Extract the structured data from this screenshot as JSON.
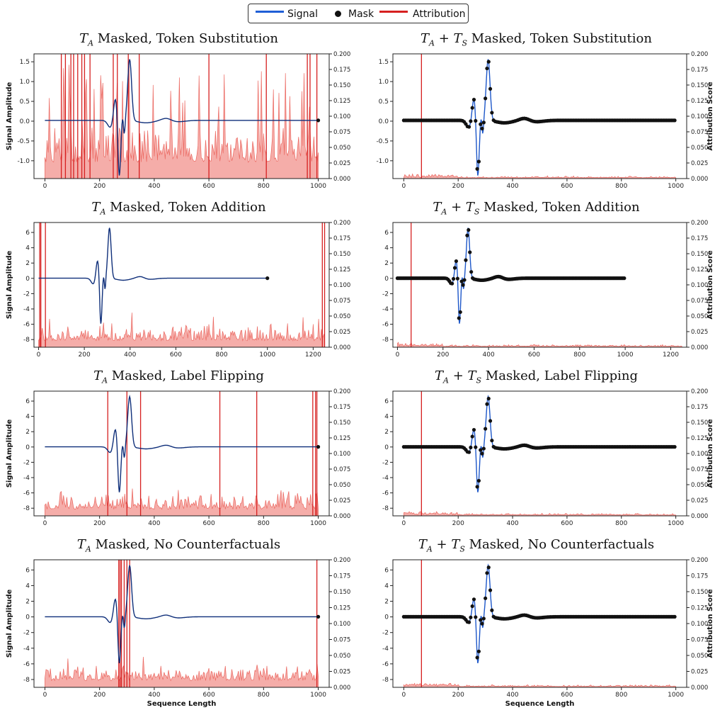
{
  "legend": {
    "signal_label": "Signal",
    "mask_label": "Mask",
    "attribution_label": "Attribution",
    "signal_color": "#1f5fd6",
    "mask_color": "#111111",
    "attribution_color": "#d62020"
  },
  "chart_data": [
    {
      "id": "p1",
      "type": "line",
      "title_main": "T",
      "title_sub": "A",
      "title_mid": "",
      "title_sub2": "",
      "title_rest": " Masked, Token Substitution",
      "ylabel": "Signal Amplitude",
      "y2label": "",
      "xlabel": "",
      "mask_markers": false,
      "attr_scale": "high",
      "xlim": [
        -40,
        1040
      ],
      "ylim": [
        -1.45,
        1.7
      ],
      "y2lim": [
        0,
        0.2
      ],
      "xticks": [
        0,
        200,
        400,
        600,
        800,
        1000
      ],
      "yticks": [
        -1.0,
        -0.5,
        0.0,
        0.5,
        1.0,
        1.5
      ],
      "y2ticks": [
        0,
        0.025,
        0.05,
        0.075,
        0.1,
        0.125,
        0.15,
        0.175,
        0.2
      ],
      "signal_len": 1000,
      "attr_len": 1000,
      "amp": 1.55,
      "spikes": [
        60,
        75,
        95,
        105,
        120,
        135,
        145,
        165,
        250,
        265,
        305,
        345,
        600,
        810,
        960,
        970,
        995
      ]
    },
    {
      "id": "p2",
      "type": "line",
      "title_main": "T",
      "title_sub": "A",
      "title_mid": " + T",
      "title_sub2": "S",
      "title_rest": " Masked, Token Substitution",
      "ylabel": "",
      "y2label": "Attribution Score",
      "xlabel": "",
      "mask_markers": true,
      "attr_scale": "low",
      "xlim": [
        -40,
        1040
      ],
      "ylim": [
        -1.45,
        1.7
      ],
      "y2lim": [
        0,
        0.2
      ],
      "xticks": [
        0,
        200,
        400,
        600,
        800,
        1000
      ],
      "yticks": [
        -1.0,
        -0.5,
        0.0,
        0.5,
        1.0,
        1.5
      ],
      "y2ticks": [
        0,
        0.025,
        0.05,
        0.075,
        0.1,
        0.125,
        0.15,
        0.175,
        0.2
      ],
      "signal_len": 1000,
      "attr_len": 1000,
      "amp": 1.55,
      "spikes": [
        65
      ]
    },
    {
      "id": "p3",
      "type": "line",
      "title_main": "T",
      "title_sub": "A",
      "title_mid": "",
      "title_sub2": "",
      "title_rest": " Masked, Token Addition",
      "ylabel": "Signal Amplitude",
      "y2label": "",
      "xlabel": "",
      "mask_markers": false,
      "attr_scale": "medium",
      "xlim": [
        -20,
        1270
      ],
      "ylim": [
        -9,
        7.3
      ],
      "y2lim": [
        0,
        0.2
      ],
      "xticks": [
        0,
        200,
        400,
        600,
        800,
        1000,
        1200
      ],
      "yticks": [
        -8,
        -6,
        -4,
        -2,
        0,
        2,
        4,
        6
      ],
      "y2ticks": [
        0,
        0.025,
        0.05,
        0.075,
        0.1,
        0.125,
        0.15,
        0.175,
        0.2
      ],
      "signal_len": 1000,
      "attr_len": 1250,
      "amp": 6.6,
      "spikes": [
        5,
        10,
        30,
        1240,
        1250
      ]
    },
    {
      "id": "p4",
      "type": "line",
      "title_main": "T",
      "title_sub": "A",
      "title_mid": " + T",
      "title_sub2": "S",
      "title_rest": " Masked, Token Addition",
      "ylabel": "",
      "y2label": "Attribution Score",
      "xlabel": "",
      "mask_markers": true,
      "attr_scale": "low",
      "xlim": [
        -20,
        1270
      ],
      "ylim": [
        -9,
        7.3
      ],
      "y2lim": [
        0,
        0.2
      ],
      "xticks": [
        0,
        200,
        400,
        600,
        800,
        1000,
        1200
      ],
      "yticks": [
        -8,
        -6,
        -4,
        -2,
        0,
        2,
        4,
        6
      ],
      "y2ticks": [
        0,
        0.025,
        0.05,
        0.075,
        0.1,
        0.125,
        0.15,
        0.175,
        0.2
      ],
      "signal_len": 1000,
      "attr_len": 1250,
      "amp": 6.6,
      "spikes": [
        60
      ]
    },
    {
      "id": "p5",
      "type": "line",
      "title_main": "T",
      "title_sub": "A",
      "title_mid": "",
      "title_sub2": "",
      "title_rest": " Masked, Label Flipping",
      "ylabel": "Signal Amplitude",
      "y2label": "",
      "xlabel": "",
      "mask_markers": false,
      "attr_scale": "medium",
      "xlim": [
        -40,
        1040
      ],
      "ylim": [
        -9,
        7.3
      ],
      "y2lim": [
        0,
        0.2
      ],
      "xticks": [
        0,
        200,
        400,
        600,
        800,
        1000
      ],
      "yticks": [
        -8,
        -6,
        -4,
        -2,
        0,
        2,
        4,
        6
      ],
      "y2ticks": [
        0,
        0.025,
        0.05,
        0.075,
        0.1,
        0.125,
        0.15,
        0.175,
        0.2
      ],
      "signal_len": 1000,
      "attr_len": 1000,
      "amp": 6.6,
      "spikes": [
        230,
        300,
        350,
        640,
        775,
        980,
        990,
        995
      ]
    },
    {
      "id": "p6",
      "type": "line",
      "title_main": "T",
      "title_sub": "A",
      "title_mid": " + T",
      "title_sub2": "S",
      "title_rest": " Masked, Label Flipping",
      "ylabel": "",
      "y2label": "Attribution Score",
      "xlabel": "",
      "mask_markers": true,
      "attr_scale": "low",
      "xlim": [
        -40,
        1040
      ],
      "ylim": [
        -9,
        7.3
      ],
      "y2lim": [
        0,
        0.2
      ],
      "xticks": [
        0,
        200,
        400,
        600,
        800,
        1000
      ],
      "yticks": [
        -8,
        -6,
        -4,
        -2,
        0,
        2,
        4,
        6
      ],
      "y2ticks": [
        0,
        0.025,
        0.05,
        0.075,
        0.1,
        0.125,
        0.15,
        0.175,
        0.2
      ],
      "signal_len": 1000,
      "attr_len": 1000,
      "amp": 6.6,
      "spikes": [
        65
      ]
    },
    {
      "id": "p7",
      "type": "line",
      "title_main": "T",
      "title_sub": "A",
      "title_mid": "",
      "title_sub2": "",
      "title_rest": " Masked, No Counterfactuals",
      "ylabel": "Signal Amplitude",
      "y2label": "",
      "xlabel": "Sequence Length",
      "mask_markers": false,
      "attr_scale": "medium",
      "xlim": [
        -40,
        1040
      ],
      "ylim": [
        -9,
        7.3
      ],
      "y2lim": [
        0,
        0.2
      ],
      "xticks": [
        0,
        200,
        400,
        600,
        800,
        1000
      ],
      "yticks": [
        -8,
        -6,
        -4,
        -2,
        0,
        2,
        4,
        6
      ],
      "y2ticks": [
        0,
        0.025,
        0.05,
        0.075,
        0.1,
        0.125,
        0.15,
        0.175,
        0.2
      ],
      "signal_len": 1000,
      "attr_len": 1000,
      "amp": 6.6,
      "spikes": [
        270,
        275,
        280,
        290,
        300,
        310,
        995
      ]
    },
    {
      "id": "p8",
      "type": "line",
      "title_main": "T",
      "title_sub": "A",
      "title_mid": " + T",
      "title_sub2": "S",
      "title_rest": " Masked, No Counterfactuals",
      "ylabel": "",
      "y2label": "Attribution Score",
      "xlabel": "Sequence Length",
      "mask_markers": true,
      "attr_scale": "low",
      "xlim": [
        -40,
        1040
      ],
      "ylim": [
        -9,
        7.3
      ],
      "y2lim": [
        0,
        0.2
      ],
      "xticks": [
        0,
        200,
        400,
        600,
        800,
        1000
      ],
      "yticks": [
        -8,
        -6,
        -4,
        -2,
        0,
        2,
        4,
        6
      ],
      "y2ticks": [
        0,
        0.025,
        0.05,
        0.075,
        0.1,
        0.125,
        0.15,
        0.175,
        0.2
      ],
      "signal_len": 1000,
      "attr_len": 1000,
      "amp": 6.6,
      "spikes": [
        65
      ]
    }
  ]
}
